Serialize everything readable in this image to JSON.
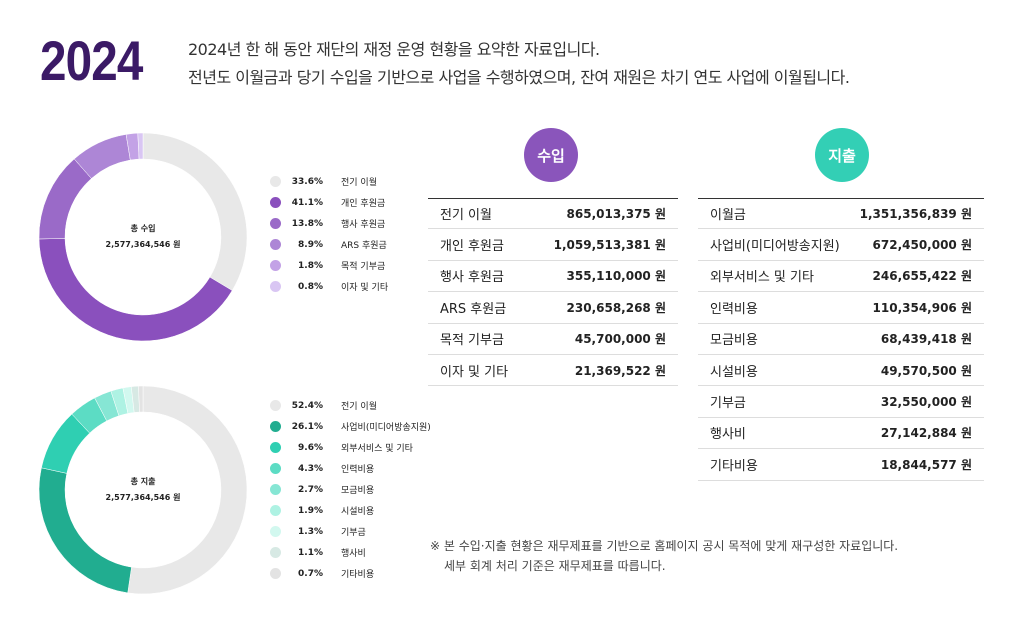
{
  "year": "2024",
  "intro": [
    "2024년 한 해 동안 재단의 재정 운영 현황을 요약한 자료입니다.",
    "전년도 이월금과 당기 수입을 기반으로 사업을 수행하였으며, 잔여 재원은 차기 연도 사업에 이월됩니다."
  ],
  "chart_data": [
    {
      "type": "pie",
      "donut": true,
      "center_label": "총 수입",
      "center_value": "2,577,364,546 원",
      "categories": [
        "전기 이월",
        "개인 후원금",
        "행사 후원금",
        "ARS 후원금",
        "목적 기부금",
        "이자 및 기타"
      ],
      "values": [
        33.6,
        41.1,
        13.8,
        8.9,
        1.8,
        0.8
      ],
      "colors": [
        "#e8e8e8",
        "#8a50bd",
        "#9a6ac8",
        "#ad86d6",
        "#c3a2e6",
        "#d9c6f3"
      ],
      "legend": "right"
    },
    {
      "type": "pie",
      "donut": true,
      "center_label": "총 지출",
      "center_value": "2,577,364,546 원",
      "categories": [
        "전기 이월",
        "사업비(미디어방송지원)",
        "외부서비스 및 기타",
        "인력비용",
        "모금비용",
        "시설비용",
        "기부금",
        "행사비",
        "기타비용"
      ],
      "values": [
        52.4,
        26.1,
        9.6,
        4.3,
        2.7,
        1.9,
        1.3,
        1.1,
        0.7
      ],
      "colors": [
        "#e8e8e8",
        "#21ad90",
        "#2fcfb2",
        "#5cdcc4",
        "#86e6d4",
        "#aef2e3",
        "#d2f8ef",
        "#d7e9e4",
        "#e3e3e3"
      ],
      "legend": "right"
    }
  ],
  "income": {
    "title": "수입",
    "color": "#8a55bb",
    "rows": [
      {
        "label": "전기 이월",
        "value": "865,013,375 원"
      },
      {
        "label": "개인 후원금",
        "value": "1,059,513,381 원"
      },
      {
        "label": "행사 후원금",
        "value": "355,110,000 원"
      },
      {
        "label": "ARS 후원금",
        "value": "230,658,268 원"
      },
      {
        "label": "목적 기부금",
        "value": "45,700,000 원"
      },
      {
        "label": "이자 및 기타",
        "value": "21,369,522 원"
      }
    ]
  },
  "expense": {
    "title": "지출",
    "color": "#33cfb5",
    "rows": [
      {
        "label": "이월금",
        "value": "1,351,356,839 원"
      },
      {
        "label": "사업비(미디어방송지원)",
        "value": "672,450,000 원"
      },
      {
        "label": "외부서비스 및 기타",
        "value": "246,655,422 원"
      },
      {
        "label": "인력비용",
        "value": "110,354,906 원"
      },
      {
        "label": "모금비용",
        "value": "68,439,418 원"
      },
      {
        "label": "시설비용",
        "value": "49,570,500 원"
      },
      {
        "label": "기부금",
        "value": "32,550,000 원"
      },
      {
        "label": "행사비",
        "value": "27,142,884 원"
      },
      {
        "label": "기타비용",
        "value": "18,844,577 원"
      }
    ]
  },
  "note": [
    "※ 본 수입·지출 현황은 재무제표를 기반으로 홈페이지 공시 목적에 맞게  재구성한 자료입니다.",
    "세부 회계 처리 기준은 재무제표를 따릅니다."
  ]
}
